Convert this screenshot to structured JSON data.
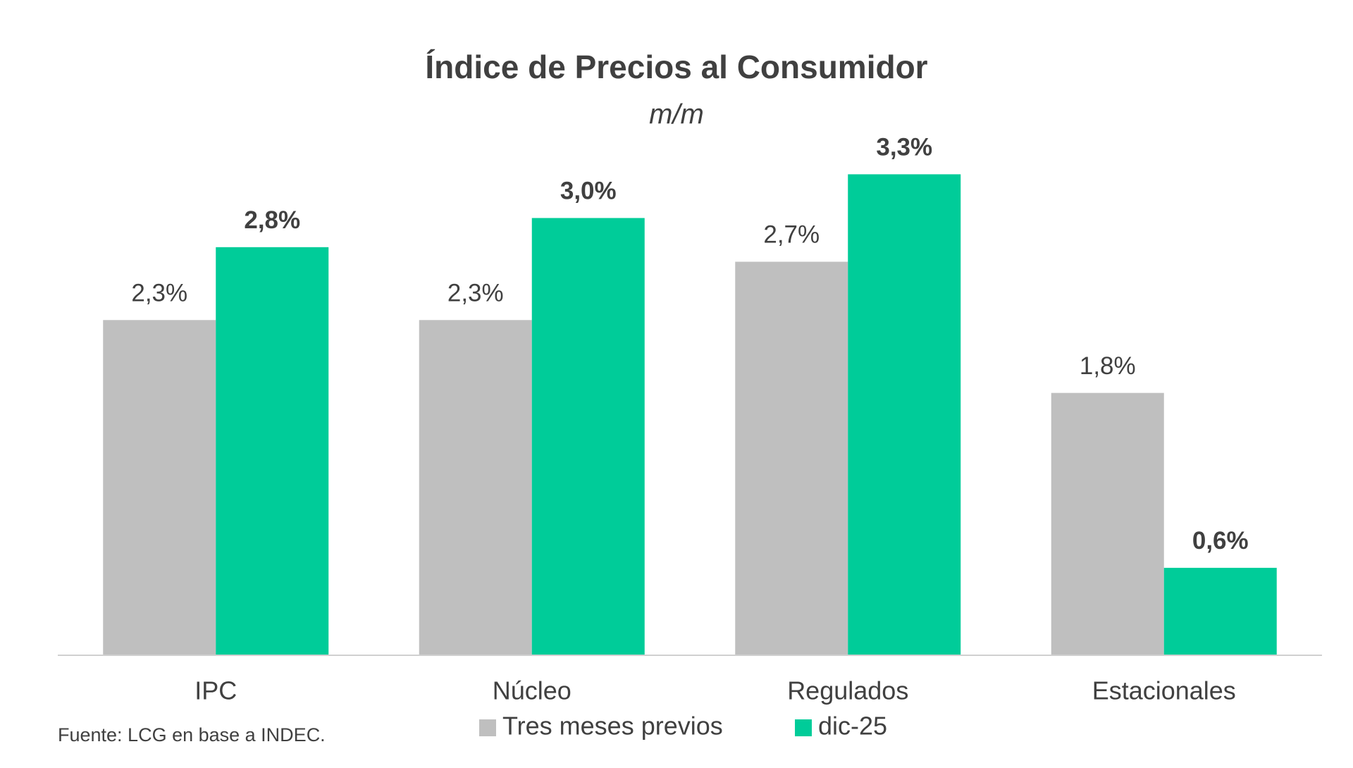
{
  "chart_data": {
    "type": "bar",
    "title": "Índice de Precios al Consumidor",
    "subtitle": "m/m",
    "categories": [
      "IPC",
      "Núcleo",
      "Regulados",
      "Estacionales"
    ],
    "series": [
      {
        "name": "Tres meses previos",
        "color": "#bfbfbf",
        "values": [
          2.3,
          2.3,
          2.7,
          1.8
        ],
        "value_labels": [
          "2,3%",
          "2,3%",
          "2,7%",
          "1,8%"
        ]
      },
      {
        "name": "dic-25",
        "color": "#00cc99",
        "values": [
          2.8,
          3.0,
          3.3,
          0.6
        ],
        "value_labels": [
          "2,8%",
          "3,0%",
          "3,3%",
          "0,6%"
        ]
      }
    ],
    "ylim": [
      0,
      3.5
    ],
    "source": "Fuente: LCG en base a INDEC."
  }
}
